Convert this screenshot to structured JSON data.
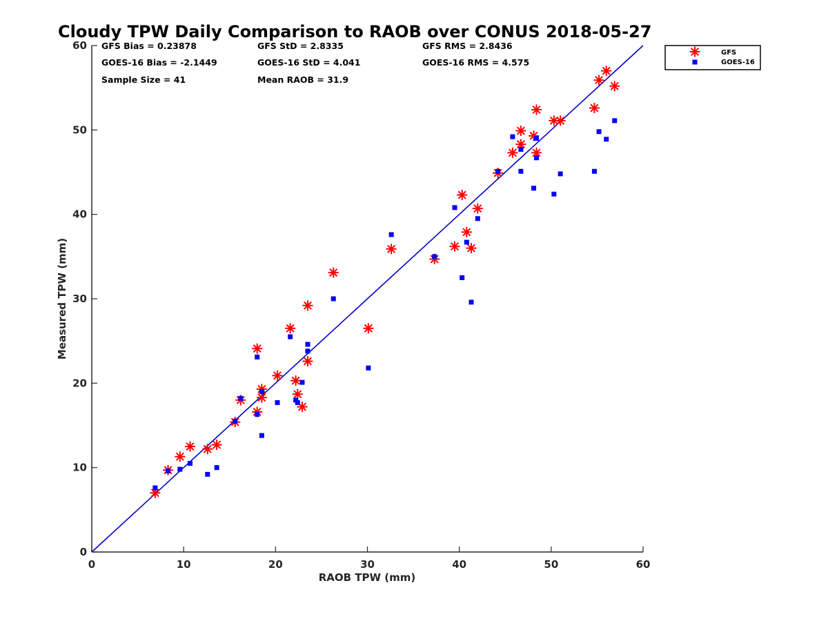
{
  "chart_data": {
    "type": "scatter",
    "title": "Cloudy TPW Daily Comparison to RAOB over CONUS 2018-05-27",
    "xlabel": "RAOB TPW (mm)",
    "ylabel": "Measured TPW (mm)",
    "xlim": [
      0,
      60
    ],
    "ylim": [
      0,
      60
    ],
    "xticks": [
      0,
      10,
      20,
      30,
      40,
      50,
      60
    ],
    "yticks": [
      0,
      10,
      20,
      30,
      40,
      50,
      60
    ],
    "grid": false,
    "legend_position": "top-right",
    "reference_line": {
      "x": [
        0,
        60
      ],
      "y": [
        0,
        60
      ],
      "color": "#0000cc"
    },
    "stats": {
      "gfs_bias": "GFS Bias = 0.23878",
      "gfs_std": "GFS StD = 2.8335",
      "gfs_rms": "GFS RMS = 2.8436",
      "goes_bias": "GOES-16 Bias = -2.1449",
      "goes_std": "GOES-16 StD = 4.041",
      "goes_rms": "GOES-16 RMS = 4.575",
      "sample_size": "Sample Size = 41",
      "mean_raob": "Mean RAOB = 31.9"
    },
    "series": [
      {
        "name": "GFS",
        "marker": "asterisk",
        "color": "#ff0000",
        "points": [
          [
            6.9,
            7.0
          ],
          [
            8.3,
            9.7
          ],
          [
            9.6,
            11.3
          ],
          [
            10.7,
            12.5
          ],
          [
            12.6,
            12.2
          ],
          [
            13.6,
            12.7
          ],
          [
            15.6,
            15.4
          ],
          [
            16.2,
            18.0
          ],
          [
            18.0,
            16.6
          ],
          [
            18.0,
            24.1
          ],
          [
            18.5,
            18.3
          ],
          [
            18.5,
            19.3
          ],
          [
            20.2,
            20.9
          ],
          [
            21.6,
            26.5
          ],
          [
            22.2,
            20.3
          ],
          [
            22.4,
            18.7
          ],
          [
            22.9,
            17.2
          ],
          [
            23.5,
            22.6
          ],
          [
            23.5,
            29.2
          ],
          [
            26.3,
            33.1
          ],
          [
            30.1,
            26.5
          ],
          [
            32.6,
            35.9
          ],
          [
            37.3,
            34.7
          ],
          [
            39.5,
            36.2
          ],
          [
            40.3,
            42.3
          ],
          [
            40.8,
            37.9
          ],
          [
            41.3,
            36.0
          ],
          [
            42.0,
            40.7
          ],
          [
            44.2,
            44.9
          ],
          [
            45.8,
            47.3
          ],
          [
            46.7,
            48.3
          ],
          [
            46.7,
            49.9
          ],
          [
            48.1,
            49.3
          ],
          [
            48.4,
            47.3
          ],
          [
            48.4,
            52.4
          ],
          [
            50.3,
            51.1
          ],
          [
            51.0,
            51.1
          ],
          [
            54.7,
            52.6
          ],
          [
            55.2,
            55.9
          ],
          [
            56.0,
            57.0
          ],
          [
            56.9,
            55.2
          ]
        ]
      },
      {
        "name": "GOES-16",
        "marker": "square",
        "color": "#0000ff",
        "points": [
          [
            6.9,
            7.6
          ],
          [
            8.3,
            9.6
          ],
          [
            9.6,
            9.8
          ],
          [
            10.7,
            10.5
          ],
          [
            12.6,
            9.2
          ],
          [
            13.6,
            10.0
          ],
          [
            15.6,
            15.5
          ],
          [
            16.2,
            18.2
          ],
          [
            18.0,
            16.3
          ],
          [
            18.0,
            23.1
          ],
          [
            18.5,
            13.8
          ],
          [
            18.5,
            19.0
          ],
          [
            20.2,
            17.7
          ],
          [
            21.6,
            25.5
          ],
          [
            22.2,
            18.0
          ],
          [
            22.4,
            17.7
          ],
          [
            22.9,
            20.1
          ],
          [
            23.5,
            23.8
          ],
          [
            23.5,
            24.6
          ],
          [
            26.3,
            30.0
          ],
          [
            30.1,
            21.8
          ],
          [
            32.6,
            37.6
          ],
          [
            37.3,
            35.0
          ],
          [
            39.5,
            40.8
          ],
          [
            40.3,
            32.5
          ],
          [
            40.8,
            36.7
          ],
          [
            41.3,
            29.6
          ],
          [
            42.0,
            39.5
          ],
          [
            44.2,
            45.1
          ],
          [
            45.8,
            49.2
          ],
          [
            46.7,
            47.7
          ],
          [
            46.7,
            45.1
          ],
          [
            48.1,
            43.1
          ],
          [
            48.4,
            46.7
          ],
          [
            48.4,
            49.0
          ],
          [
            50.3,
            42.4
          ],
          [
            51.0,
            44.8
          ],
          [
            54.7,
            45.1
          ],
          [
            55.2,
            49.8
          ],
          [
            56.0,
            48.9
          ],
          [
            56.9,
            51.1
          ]
        ]
      }
    ]
  }
}
